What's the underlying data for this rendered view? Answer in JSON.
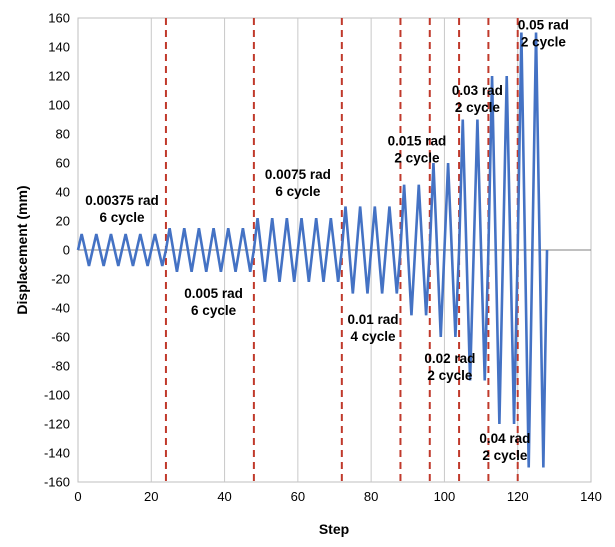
{
  "chart_data": {
    "type": "line",
    "xlabel": "Step",
    "ylabel": "Displacement (mm)",
    "xlim": [
      0,
      140
    ],
    "ylim": [
      -160,
      160
    ],
    "x_ticks": [
      0,
      20,
      40,
      60,
      80,
      100,
      120,
      140
    ],
    "y_ticks": [
      -160,
      -140,
      -120,
      -100,
      -80,
      -60,
      -40,
      -20,
      0,
      20,
      40,
      60,
      80,
      100,
      120,
      140,
      160
    ],
    "grid": "vertical",
    "colors": {
      "series": "#4472c4",
      "boundary": "#c0392b",
      "grid": "#c8c8c8",
      "zero_line": "#808080"
    },
    "series": [
      {
        "x": [
          0,
          1,
          2,
          3,
          4,
          5,
          6,
          7,
          8,
          9,
          10,
          11,
          12,
          13,
          14,
          15,
          16,
          17,
          18,
          19,
          20,
          21,
          22,
          23,
          24,
          25,
          26,
          27,
          28,
          29,
          30,
          31,
          32,
          33,
          34,
          35,
          36,
          37,
          38,
          39,
          40,
          41,
          42,
          43,
          44,
          45,
          46,
          47,
          48,
          49,
          50,
          51,
          52,
          53,
          54,
          55,
          56,
          57,
          58,
          59,
          60,
          61,
          62,
          63,
          64,
          65,
          66,
          67,
          68,
          69,
          70,
          71,
          72,
          73,
          74,
          75,
          76,
          77,
          78,
          79,
          80,
          81,
          82,
          83,
          84,
          85,
          86,
          87,
          88,
          89,
          90,
          91,
          92,
          93,
          94,
          95,
          96,
          97,
          98,
          99,
          100,
          101,
          102,
          103,
          104,
          105,
          106,
          107,
          108,
          109,
          110,
          111,
          112,
          113,
          114,
          115,
          116,
          117,
          118,
          119,
          120,
          121,
          122,
          123,
          124,
          125,
          126,
          127,
          128
        ],
        "y": [
          0,
          11,
          0,
          -11,
          0,
          11,
          0,
          -11,
          0,
          11,
          0,
          -11,
          0,
          11,
          0,
          -11,
          0,
          11,
          0,
          -11,
          0,
          11,
          0,
          -11,
          0,
          15,
          0,
          -15,
          0,
          15,
          0,
          -15,
          0,
          15,
          0,
          -15,
          0,
          15,
          0,
          -15,
          0,
          15,
          0,
          -15,
          0,
          15,
          0,
          -15,
          0,
          22,
          0,
          -22,
          0,
          22,
          0,
          -22,
          0,
          22,
          0,
          -22,
          0,
          22,
          0,
          -22,
          0,
          22,
          0,
          -22,
          0,
          22,
          0,
          -22,
          0,
          30,
          0,
          -30,
          0,
          30,
          0,
          -30,
          0,
          30,
          0,
          -30,
          0,
          30,
          0,
          -30,
          0,
          45,
          0,
          -45,
          0,
          45,
          0,
          -45,
          0,
          60,
          0,
          -60,
          0,
          60,
          0,
          -60,
          0,
          90,
          0,
          -90,
          0,
          90,
          0,
          -90,
          0,
          120,
          0,
          -120,
          0,
          120,
          0,
          -120,
          0,
          150,
          0,
          -150,
          0,
          150,
          0,
          -150,
          0
        ]
      }
    ],
    "boundaries": [
      24,
      48,
      72,
      88,
      96,
      104,
      112,
      120
    ],
    "annotations": [
      {
        "line1": "0.00375 rad",
        "line2": "6 cycle",
        "x": 12,
        "y": 31
      },
      {
        "line1": "0.005 rad",
        "line2": "6 cycle",
        "x": 37,
        "y": -33
      },
      {
        "line1": "0.0075 rad",
        "line2": "6 cycle",
        "x": 60,
        "y": 49
      },
      {
        "line1": "0.01 rad",
        "line2": "4 cycle",
        "x": 80.5,
        "y": -51
      },
      {
        "line1": "0.015 rad",
        "line2": "2 cycle",
        "x": 92.5,
        "y": 72
      },
      {
        "line1": "0.02 rad",
        "line2": "2 cycle",
        "x": 101.5,
        "y": -78
      },
      {
        "line1": "0.03 rad",
        "line2": "2 cycle",
        "x": 109,
        "y": 107
      },
      {
        "line1": "0.04 rad",
        "line2": "2 cycle",
        "x": 116.5,
        "y": -133
      },
      {
        "line1": "0.05 rad",
        "line2": "2 cycle",
        "x": 127,
        "y": 152
      }
    ]
  }
}
